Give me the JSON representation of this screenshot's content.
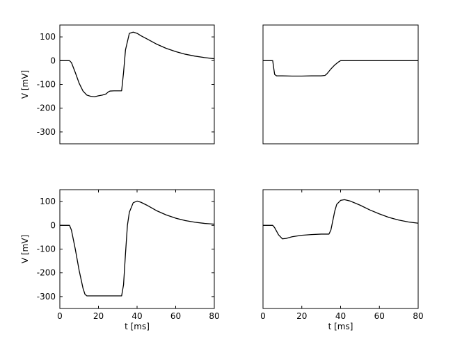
{
  "chart_data": [
    {
      "type": "line",
      "panel": "top-left",
      "xlim": [
        0,
        80
      ],
      "ylim": [
        -350,
        150
      ],
      "yticks": [
        100,
        0,
        -100,
        -200,
        -300
      ],
      "xticks": [],
      "ylabel": "V [mV]",
      "xlabel": "",
      "grid": false,
      "series": [
        {
          "x": [
            0,
            5,
            6,
            8,
            10,
            12,
            14,
            16,
            18,
            20,
            22,
            24,
            25,
            26,
            28,
            30,
            32,
            33,
            34,
            36,
            38,
            40,
            42,
            45,
            50,
            55,
            60,
            65,
            70,
            75,
            80
          ],
          "y": [
            0,
            0,
            -8,
            -50,
            -95,
            -128,
            -145,
            -150,
            -152,
            -148,
            -145,
            -140,
            -132,
            -128,
            -127,
            -127,
            -127,
            -50,
            45,
            115,
            120,
            115,
            105,
            92,
            70,
            52,
            38,
            27,
            19,
            13,
            8
          ]
        }
      ]
    },
    {
      "type": "line",
      "panel": "top-right",
      "xlim": [
        0,
        80
      ],
      "ylim": [
        -350,
        150
      ],
      "yticks": [],
      "xticks": [],
      "ylabel": "",
      "xlabel": "",
      "grid": false,
      "series": [
        {
          "x": [
            0,
            5,
            5.5,
            6,
            7,
            10,
            15,
            20,
            25,
            30,
            32,
            33,
            35,
            37,
            39,
            40,
            42,
            50,
            60,
            70,
            80
          ],
          "y": [
            0,
            0,
            -30,
            -58,
            -64,
            -64,
            -65,
            -65,
            -64,
            -64,
            -62,
            -55,
            -35,
            -18,
            -5,
            0,
            0,
            0,
            0,
            0,
            0
          ]
        }
      ]
    },
    {
      "type": "line",
      "panel": "bottom-left",
      "xlim": [
        0,
        80
      ],
      "ylim": [
        -350,
        150
      ],
      "yticks": [
        100,
        0,
        -100,
        -200,
        -300
      ],
      "xticks": [
        0,
        20,
        40,
        60,
        80
      ],
      "ylabel": "V [mV]",
      "xlabel": "t [ms]",
      "grid": false,
      "series": [
        {
          "x": [
            0,
            5,
            6,
            8,
            10,
            12,
            13,
            14,
            15,
            20,
            25,
            30,
            32,
            33,
            34,
            35,
            36,
            38,
            40,
            42,
            45,
            50,
            55,
            60,
            65,
            70,
            75,
            80
          ],
          "y": [
            0,
            0,
            -20,
            -100,
            -190,
            -265,
            -290,
            -297,
            -297,
            -297,
            -297,
            -297,
            -297,
            -250,
            -120,
            0,
            55,
            95,
            102,
            97,
            85,
            62,
            44,
            30,
            20,
            13,
            8,
            5
          ]
        }
      ]
    },
    {
      "type": "line",
      "panel": "bottom-right",
      "xlim": [
        0,
        80
      ],
      "ylim": [
        -350,
        150
      ],
      "yticks": [],
      "xticks": [
        0,
        20,
        40,
        60,
        80
      ],
      "ylabel": "",
      "xlabel": "t [ms]",
      "grid": false,
      "series": [
        {
          "x": [
            0,
            5,
            6,
            8,
            10,
            12,
            15,
            20,
            25,
            30,
            34,
            35,
            36,
            37,
            38,
            40,
            42,
            45,
            50,
            55,
            60,
            65,
            70,
            75,
            80
          ],
          "y": [
            0,
            0,
            -10,
            -40,
            -57,
            -55,
            -48,
            -42,
            -39,
            -37,
            -37,
            -20,
            20,
            60,
            88,
            105,
            108,
            102,
            85,
            65,
            48,
            33,
            22,
            14,
            9
          ]
        }
      ]
    }
  ]
}
